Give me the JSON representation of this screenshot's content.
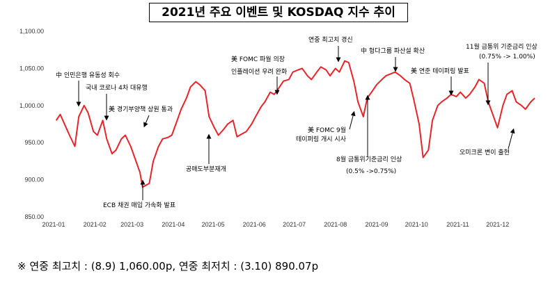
{
  "chart_data": {
    "type": "line",
    "title": "2021년 주요 이벤트 및 KOSDAQ 지수 추이",
    "ylim": [
      850,
      1100
    ],
    "yticks": [
      "850.00",
      "900.00",
      "950.00",
      "1,000.00",
      "1,050.00",
      "1,100.00"
    ],
    "xticks": [
      "2021-01",
      "2021-02",
      "2021-03",
      "2021-04",
      "2021-05",
      "2021-06",
      "2021-07",
      "2021-08",
      "2021-09",
      "2021-10",
      "2021-11",
      "2021-12"
    ],
    "grid": false,
    "line_color": "#e8232a",
    "series": [
      {
        "x": [
          "2021-01-04",
          "2021-01-07",
          "2021-01-11",
          "2021-01-14",
          "2021-01-18",
          "2021-01-21",
          "2021-01-25",
          "2021-01-28",
          "2021-02-01",
          "2021-02-04",
          "2021-02-08",
          "2021-02-11",
          "2021-02-15",
          "2021-02-18",
          "2021-02-22",
          "2021-02-25",
          "2021-03-01",
          "2021-03-04",
          "2021-03-08",
          "2021-03-10",
          "2021-03-15",
          "2021-03-18",
          "2021-03-22",
          "2021-03-25",
          "2021-03-29",
          "2021-04-01",
          "2021-04-05",
          "2021-04-08",
          "2021-04-12",
          "2021-04-15",
          "2021-04-19",
          "2021-04-22",
          "2021-04-26",
          "2021-04-29",
          "2021-05-03",
          "2021-05-06",
          "2021-05-10",
          "2021-05-13",
          "2021-05-17",
          "2021-05-20",
          "2021-05-24",
          "2021-05-27",
          "2021-05-31",
          "2021-06-03",
          "2021-06-07",
          "2021-06-10",
          "2021-06-14",
          "2021-06-17",
          "2021-06-21",
          "2021-06-24",
          "2021-06-28",
          "2021-07-01",
          "2021-07-05",
          "2021-07-08",
          "2021-07-12",
          "2021-07-15",
          "2021-07-19",
          "2021-07-22",
          "2021-07-26",
          "2021-07-29",
          "2021-08-02",
          "2021-08-05",
          "2021-08-09",
          "2021-08-12",
          "2021-08-16",
          "2021-08-19",
          "2021-08-23",
          "2021-08-26",
          "2021-08-30",
          "2021-09-02",
          "2021-09-06",
          "2021-09-09",
          "2021-09-13",
          "2021-09-16",
          "2021-09-20",
          "2021-09-23",
          "2021-09-27",
          "2021-09-30",
          "2021-10-04",
          "2021-10-07",
          "2021-10-11",
          "2021-10-14",
          "2021-10-18",
          "2021-10-21",
          "2021-10-25",
          "2021-10-28",
          "2021-11-01",
          "2021-11-04",
          "2021-11-08",
          "2021-11-11",
          "2021-11-15",
          "2021-11-18",
          "2021-11-22",
          "2021-11-25",
          "2021-11-29",
          "2021-12-02",
          "2021-12-06",
          "2021-12-09",
          "2021-12-13",
          "2021-12-16",
          "2021-12-20",
          "2021-12-23",
          "2021-12-27",
          "2021-12-30"
        ],
        "values": [
          980,
          988,
          972,
          960,
          945,
          985,
          1000,
          990,
          965,
          960,
          980,
          955,
          935,
          940,
          955,
          960,
          945,
          930,
          910,
          890,
          895,
          925,
          945,
          955,
          957,
          960,
          980,
          995,
          1010,
          1025,
          1032,
          1028,
          1020,
          985,
          970,
          960,
          968,
          975,
          980,
          958,
          962,
          965,
          975,
          985,
          998,
          1005,
          1018,
          1015,
          1025,
          1033,
          1035,
          1045,
          1048,
          1050,
          1040,
          1035,
          1045,
          1052,
          1048,
          1040,
          1050,
          1045,
          1060,
          1058,
          1032,
          1005,
          985,
          1010,
          1020,
          1028,
          1035,
          1040,
          1043,
          1045,
          1040,
          1035,
          1030,
          1008,
          975,
          930,
          940,
          980,
          1000,
          1005,
          1010,
          1015,
          1012,
          1018,
          1010,
          1015,
          1025,
          1035,
          1030,
          1005,
          985,
          970,
          1000,
          1015,
          1020,
          1005,
          1000,
          995,
          1005,
          1010
        ]
      }
    ],
    "annotations": [
      "中 인민은행 유동성 회수",
      "국내 코로나 4차 대유행",
      "美 경기부양책 상원 통과",
      "ECB 채권 매입 가속화 발표",
      "공매도부분재개",
      "美 FOMC 파월 의장",
      "인플레이션 우려 완화",
      "연중 최고치 경신",
      "美 FOMC 9월",
      "테이퍼링 개시 시사",
      "8월 금통위기준금리 인상",
      "(0.5% ->0.75%)",
      "中 헝다그룹 파산설 확산",
      "美 연준 테이퍼링 발표",
      "11월 금통위 기준금리 인상",
      "(0.75% -> 1.00%)",
      "오미크론 변이 출현"
    ]
  },
  "footnote": "※ 연중 최고치 : (8.9) 1,060.00p, 연중 최저치 : (3.10) 890.07p"
}
